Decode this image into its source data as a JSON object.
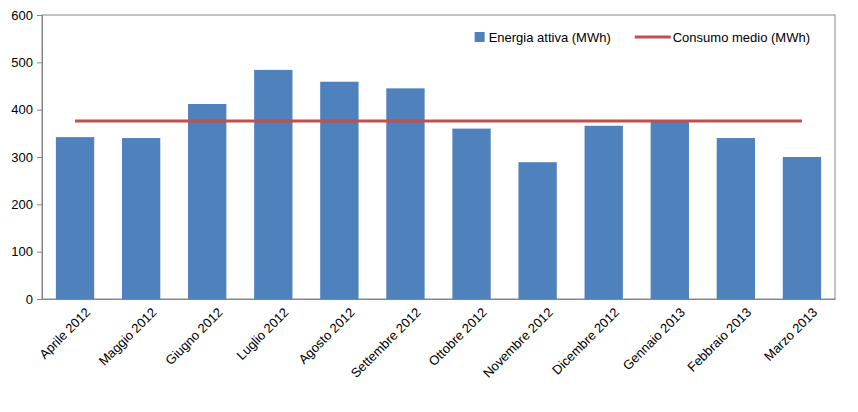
{
  "chart_data": {
    "type": "bar",
    "categories": [
      "Aprile 2012",
      "Maggio 2012",
      "Giugno 2012",
      "Luglio 2012",
      "Agosto 2012",
      "Settembre 2012",
      "Ottobre 2012",
      "Novembre 2012",
      "Dicembre 2012",
      "Gennaio 2013",
      "Febbraio 2013",
      "Marzo 2013"
    ],
    "series": [
      {
        "name": "Energia attiva (MWh)",
        "type": "bar",
        "color": "#4f81bd",
        "values": [
          342,
          340,
          412,
          484,
          459,
          445,
          360,
          289,
          366,
          375,
          340,
          300
        ]
      },
      {
        "name": "Consumo medio (MWh)",
        "type": "line",
        "color": "#c0504d",
        "values": [
          376,
          376,
          376,
          376,
          376,
          376,
          376,
          376,
          376,
          376,
          376,
          376
        ]
      }
    ],
    "ylim": [
      0,
      600
    ],
    "yticks": [
      0,
      100,
      200,
      300,
      400,
      500,
      600
    ],
    "grid": false,
    "legend": "top-right"
  }
}
